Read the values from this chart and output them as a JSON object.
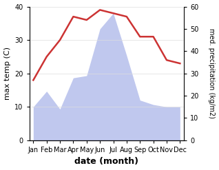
{
  "months": [
    "Jan",
    "Feb",
    "Mar",
    "Apr",
    "May",
    "Jun",
    "Jul",
    "Aug",
    "Sep",
    "Oct",
    "Nov",
    "Dec"
  ],
  "month_positions": [
    0,
    1,
    2,
    3,
    4,
    5,
    6,
    7,
    8,
    9,
    10,
    11
  ],
  "temperature": [
    18,
    25,
    30,
    37,
    36,
    39,
    38,
    37,
    31,
    31,
    24,
    23
  ],
  "precipitation": [
    15,
    22,
    14,
    28,
    29,
    50,
    57,
    38,
    18,
    16,
    15,
    15
  ],
  "temp_color": "#cc3333",
  "precip_color": "#c0c8ee",
  "ylim_temp": [
    0,
    40
  ],
  "ylim_precip": [
    0,
    60
  ],
  "ylabel_left": "max temp (C)",
  "ylabel_right": "med. precipitation (kg/m2)",
  "xlabel": "date (month)",
  "temp_linewidth": 1.8,
  "background_color": "#ffffff"
}
